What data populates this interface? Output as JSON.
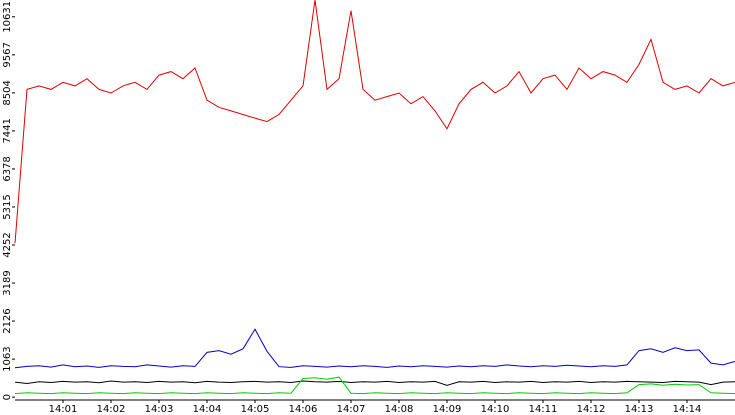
{
  "chart_data": {
    "type": "line",
    "x": [
      0,
      0.25,
      0.5,
      0.75,
      1,
      1.25,
      1.5,
      1.75,
      2,
      2.25,
      2.5,
      2.75,
      3,
      3.25,
      3.5,
      3.75,
      4,
      4.25,
      4.5,
      4.75,
      5,
      5.25,
      5.5,
      5.75,
      6,
      6.25,
      6.5,
      6.75,
      7,
      7.25,
      7.5,
      7.75,
      8,
      8.25,
      8.5,
      8.75,
      9,
      9.25,
      9.5,
      9.75,
      10,
      10.25,
      10.5,
      10.75,
      11,
      11.25,
      11.5,
      11.75,
      12,
      12.25,
      12.5,
      12.75,
      13,
      13.25,
      13.5,
      13.75,
      14,
      14.25,
      14.5,
      14.75,
      15
    ],
    "xlim": [
      0,
      15
    ],
    "xticks": [
      {
        "value": 1,
        "label": "14:01"
      },
      {
        "value": 2,
        "label": "14:02"
      },
      {
        "value": 3,
        "label": "14:03"
      },
      {
        "value": 4,
        "label": "14:04"
      },
      {
        "value": 5,
        "label": "14:05"
      },
      {
        "value": 6,
        "label": "14:06"
      },
      {
        "value": 7,
        "label": "14:07"
      },
      {
        "value": 8,
        "label": "14:08"
      },
      {
        "value": 9,
        "label": "14:09"
      },
      {
        "value": 10,
        "label": "14:10"
      },
      {
        "value": 11,
        "label": "14:11"
      },
      {
        "value": 12,
        "label": "14:12"
      },
      {
        "value": 13,
        "label": "14:13"
      },
      {
        "value": 14,
        "label": "14:14"
      }
    ],
    "ylim": [
      -80,
      11100
    ],
    "yticks": [
      0,
      1063,
      2126,
      3189,
      4252,
      5315,
      6378,
      7441,
      8504,
      9567,
      10631
    ],
    "series": [
      {
        "color": "#e00000",
        "values": [
          4300,
          8600,
          8700,
          8600,
          8800,
          8700,
          8900,
          8600,
          8500,
          8700,
          8800,
          8600,
          9000,
          9100,
          8900,
          9200,
          8300,
          8100,
          8000,
          7900,
          7800,
          7700,
          7900,
          8300,
          8700,
          11100,
          8600,
          8900,
          10800,
          8600,
          8300,
          8400,
          8500,
          8200,
          8400,
          8000,
          7500,
          8200,
          8600,
          8800,
          8500,
          8700,
          9100,
          8500,
          8900,
          9000,
          8600,
          9200,
          8900,
          9100,
          9000,
          8800,
          9300,
          10000,
          8800,
          8600,
          8700,
          8500,
          8900,
          8700,
          8800
        ]
      },
      {
        "color": "#0000cc",
        "values": [
          820,
          860,
          880,
          840,
          900,
          850,
          870,
          830,
          880,
          860,
          850,
          900,
          870,
          840,
          880,
          860,
          1250,
          1300,
          1200,
          1350,
          1900,
          1280,
          850,
          830,
          880,
          860,
          840,
          870,
          850,
          880,
          860,
          830,
          870,
          850,
          880,
          860,
          840,
          870,
          850,
          880,
          860,
          900,
          870,
          850,
          880,
          860,
          890,
          870,
          850,
          880,
          860,
          900,
          1300,
          1350,
          1250,
          1380,
          1300,
          1320,
          950,
          900,
          1000
        ]
      },
      {
        "color": "#000000",
        "values": [
          420,
          380,
          430,
          410,
          440,
          420,
          430,
          400,
          450,
          420,
          430,
          410,
          440,
          420,
          430,
          400,
          440,
          420,
          410,
          430,
          440,
          420,
          430,
          410,
          450,
          430,
          420,
          440,
          410,
          430,
          420,
          440,
          410,
          430,
          420,
          440,
          330,
          430,
          420,
          440,
          410,
          430,
          420,
          440,
          410,
          430,
          420,
          440,
          410,
          430,
          420,
          440,
          430,
          420,
          410,
          440,
          430,
          420,
          350,
          420,
          430
        ]
      },
      {
        "color": "#00cc00",
        "values": [
          100,
          120,
          110,
          100,
          120,
          110,
          100,
          120,
          110,
          100,
          120,
          110,
          100,
          120,
          110,
          100,
          120,
          110,
          100,
          120,
          110,
          100,
          120,
          110,
          520,
          540,
          500,
          560,
          110,
          100,
          120,
          110,
          100,
          120,
          110,
          100,
          120,
          110,
          100,
          120,
          110,
          100,
          120,
          110,
          100,
          120,
          110,
          100,
          120,
          110,
          100,
          120,
          350,
          370,
          330,
          360,
          340,
          350,
          120,
          110,
          100
        ]
      }
    ]
  }
}
